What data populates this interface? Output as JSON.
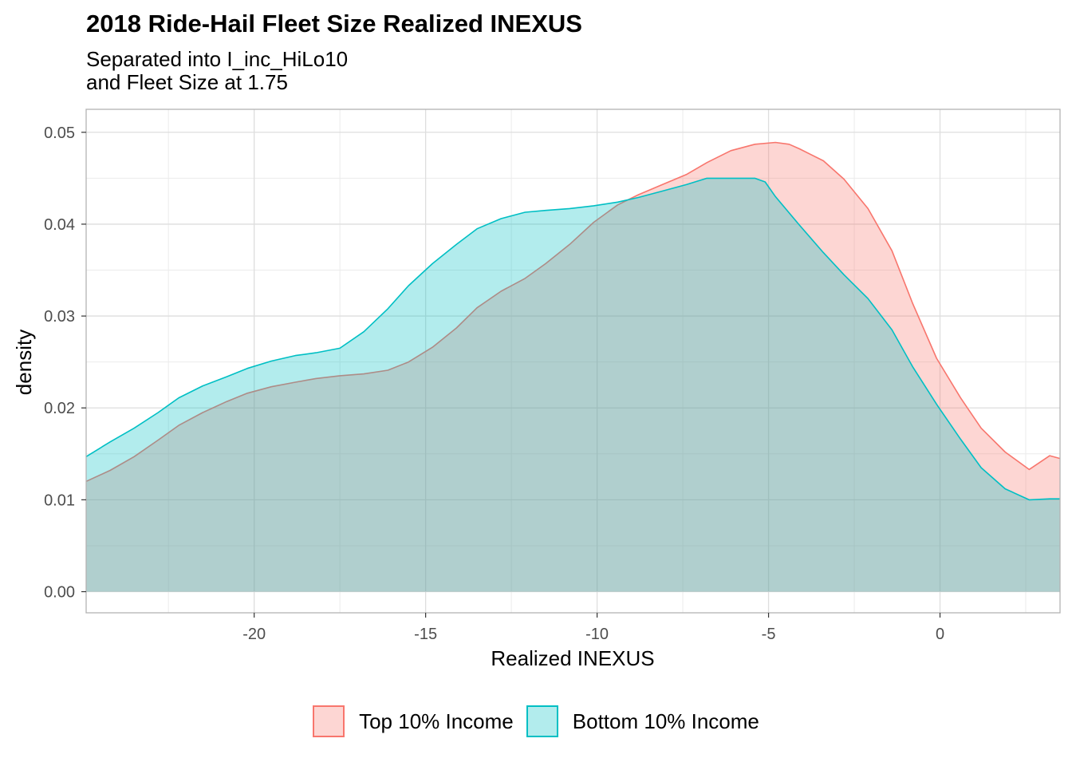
{
  "chart_data": {
    "type": "area",
    "title": "2018 Ride-Hail Fleet Size Realized INEXUS",
    "subtitle_lines": [
      "Separated into I_inc_HiLo10",
      "and Fleet Size at 1.75"
    ],
    "xlabel": "Realized INEXUS",
    "ylabel": "density",
    "xlim": [
      -24.9,
      3.5
    ],
    "ylim": [
      -0.0023,
      0.0525
    ],
    "x_ticks": [
      -20,
      -15,
      -10,
      -5,
      0
    ],
    "x_tick_labels": [
      "-20",
      "-15",
      "-10",
      "-5",
      "0"
    ],
    "y_ticks": [
      0,
      0.01,
      0.02,
      0.03,
      0.04,
      0.05
    ],
    "y_tick_labels": [
      "0.00",
      "0.01",
      "0.02",
      "0.03",
      "0.04",
      "0.05"
    ],
    "grid": true,
    "legend_position": "bottom",
    "series": [
      {
        "name": "Top 10% Income",
        "fill": "#F8766D",
        "line": "#F8766D",
        "x": [
          -24.9,
          -24.2,
          -23.5,
          -22.8,
          -22.2,
          -21.5,
          -20.8,
          -20.2,
          -19.5,
          -18.8,
          -18.2,
          -17.5,
          -16.8,
          -16.1,
          -15.5,
          -14.8,
          -14.1,
          -13.5,
          -12.8,
          -12.1,
          -11.5,
          -10.8,
          -10.1,
          -9.4,
          -8.8,
          -8.1,
          -7.4,
          -6.8,
          -6.1,
          -5.4,
          -4.8,
          -4.4,
          -4.1,
          -3.4,
          -2.8,
          -2.1,
          -1.4,
          -0.8,
          -0.1,
          0.6,
          1.2,
          1.9,
          2.6,
          3.2,
          3.5
        ],
        "y": [
          0.012,
          0.0132,
          0.0147,
          0.0165,
          0.0181,
          0.0195,
          0.0207,
          0.0216,
          0.0223,
          0.0228,
          0.0232,
          0.0235,
          0.0237,
          0.0241,
          0.025,
          0.0266,
          0.0287,
          0.0309,
          0.0327,
          0.0341,
          0.0357,
          0.0378,
          0.0402,
          0.0421,
          0.0432,
          0.0443,
          0.0454,
          0.0467,
          0.048,
          0.0487,
          0.0489,
          0.0487,
          0.0482,
          0.0469,
          0.0449,
          0.0417,
          0.0371,
          0.0314,
          0.0254,
          0.0211,
          0.0178,
          0.0152,
          0.0133,
          0.0148,
          0.0145
        ]
      },
      {
        "name": "Bottom 10% Income",
        "fill": "#00BFC4",
        "line": "#00BFC4",
        "x": [
          -24.9,
          -24.2,
          -23.5,
          -22.8,
          -22.2,
          -21.5,
          -20.8,
          -20.2,
          -19.5,
          -18.8,
          -18.2,
          -17.5,
          -16.8,
          -16.1,
          -15.5,
          -14.8,
          -14.1,
          -13.5,
          -12.8,
          -12.1,
          -11.5,
          -10.8,
          -10.1,
          -9.4,
          -8.8,
          -8.1,
          -7.4,
          -6.8,
          -6.1,
          -5.4,
          -5.1,
          -4.8,
          -4.1,
          -3.4,
          -2.8,
          -2.1,
          -1.4,
          -0.8,
          -0.1,
          0.6,
          1.2,
          1.9,
          2.6,
          3.2,
          3.5
        ],
        "y": [
          0.0147,
          0.0163,
          0.0178,
          0.0195,
          0.0211,
          0.0224,
          0.0234,
          0.0243,
          0.0251,
          0.0257,
          0.026,
          0.0265,
          0.0283,
          0.0308,
          0.0333,
          0.0357,
          0.0378,
          0.0395,
          0.0406,
          0.0413,
          0.0415,
          0.0417,
          0.042,
          0.0424,
          0.0429,
          0.0436,
          0.0443,
          0.045,
          0.045,
          0.045,
          0.0446,
          0.043,
          0.0399,
          0.0369,
          0.0345,
          0.0319,
          0.0285,
          0.0245,
          0.0204,
          0.0166,
          0.0135,
          0.0112,
          0.01,
          0.0101,
          0.0101
        ]
      }
    ]
  }
}
